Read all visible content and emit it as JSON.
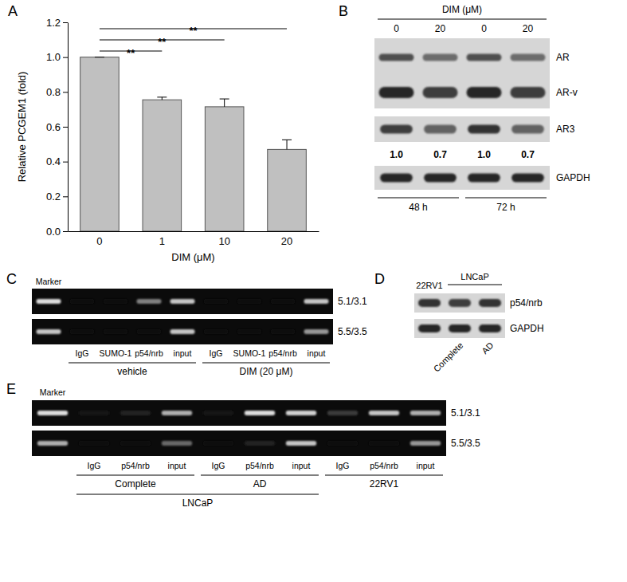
{
  "chart_data": {
    "type": "bar",
    "title": "A",
    "categories": [
      "0",
      "1",
      "10",
      "20"
    ],
    "values": [
      1.0,
      0.755,
      0.715,
      0.47
    ],
    "errors": [
      0,
      0.015,
      0.045,
      0.055
    ],
    "color": "#c0c0c0",
    "x_label": "DIM (μM)",
    "y_label": "Relative PCGEM1 (fold)",
    "ylim": [
      0,
      1.2
    ],
    "yticks": [
      {
        "value": 0,
        "label": "0.0"
      },
      {
        "value": 0.2,
        "label": "0.2"
      },
      {
        "value": 0.4,
        "label": "0.4"
      },
      {
        "value": 0.6,
        "label": "0.6"
      },
      {
        "value": 0.8,
        "label": "0.8"
      },
      {
        "value": 1.0,
        "label": "1.0"
      },
      {
        "value": 1.2,
        "label": "1.2"
      }
    ],
    "grid": false,
    "annotations": [
      {
        "text": "**",
        "from": "0",
        "to": "1"
      },
      {
        "text": "**",
        "from": "0",
        "to": "10"
      },
      {
        "text": "**",
        "from": "0",
        "to": "20"
      }
    ]
  },
  "panels": {
    "B": {
      "label": "B",
      "header": "DIM (μM)",
      "lanes": [
        "0",
        "20",
        "0",
        "20"
      ],
      "blots": [
        {
          "rows": [
            {
              "name": "AR",
              "intensity": [
                0.7,
                0.55,
                0.7,
                0.55
              ]
            },
            {
              "name": "AR-v",
              "intensity": [
                0.9,
                0.8,
                0.9,
                0.8
              ]
            }
          ]
        },
        {
          "rows": [
            {
              "name": "AR3",
              "intensity": [
                0.8,
                0.6,
                0.85,
                0.6
              ]
            }
          ],
          "quantification": [
            "1.0",
            "0.7",
            "1.0",
            "0.7"
          ]
        },
        {
          "rows": [
            {
              "name": "GAPDH",
              "intensity": [
                0.9,
                0.9,
                0.9,
                0.9
              ]
            }
          ]
        }
      ],
      "groups": [
        {
          "label": "48 h",
          "start": 0,
          "size": 2
        },
        {
          "label": "72 h",
          "start": 2,
          "size": 2
        }
      ]
    },
    "C": {
      "label": "C",
      "lanes": [
        "Marker",
        "IgG",
        "SUMO-1",
        "p54/nrb",
        "input",
        "IgG",
        "SUMO-1",
        "p54/nrb",
        "input"
      ],
      "rows": [
        {
          "name": "5.1/3.1",
          "intensity": [
            0.9,
            0,
            0,
            0.5,
            0.8,
            0,
            0,
            0,
            0.8
          ]
        },
        {
          "name": "5.5/3.5",
          "intensity": [
            0.8,
            0,
            0,
            0,
            0.8,
            0,
            0,
            0,
            0.6
          ]
        }
      ],
      "groups": [
        {
          "label": "vehicle",
          "start": 1,
          "size": 4
        },
        {
          "label": "DIM (20 μM)",
          "start": 5,
          "size": 4
        }
      ]
    },
    "D": {
      "label": "D",
      "lanes": [
        "22RV1",
        "Complete",
        "AD"
      ],
      "rows": [
        {
          "name": "p54/nrb",
          "intensity": [
            0.85,
            0.8,
            0.85
          ]
        },
        {
          "name": "GAPDH",
          "intensity": [
            0.9,
            0.9,
            0.9
          ]
        }
      ],
      "groups": [
        {
          "label": "LNCaP",
          "start": 1,
          "size": 2
        }
      ]
    },
    "E": {
      "label": "E",
      "lanes": [
        "Marker",
        "IgG",
        "p54/nrb",
        "input",
        "IgG",
        "p54/nrb",
        "input",
        "IgG",
        "p54/nrb",
        "input"
      ],
      "rows": [
        {
          "name": "5.1/3.1",
          "intensity": [
            0.9,
            0.05,
            0.1,
            0.7,
            0.05,
            0.9,
            0.85,
            0.2,
            0.8,
            0.7
          ]
        },
        {
          "name": "5.5/3.5",
          "intensity": [
            0.7,
            0,
            0,
            0.4,
            0,
            0.1,
            0.8,
            0,
            0,
            0.6
          ]
        }
      ],
      "groups": [
        {
          "label": "Complete",
          "start": 1,
          "size": 3
        },
        {
          "label": "AD",
          "start": 4,
          "size": 3
        },
        {
          "label": "22RV1",
          "start": 7,
          "size": 3
        }
      ],
      "super_groups": [
        {
          "label": "LNCaP",
          "start": 1,
          "size": 6
        }
      ]
    }
  }
}
